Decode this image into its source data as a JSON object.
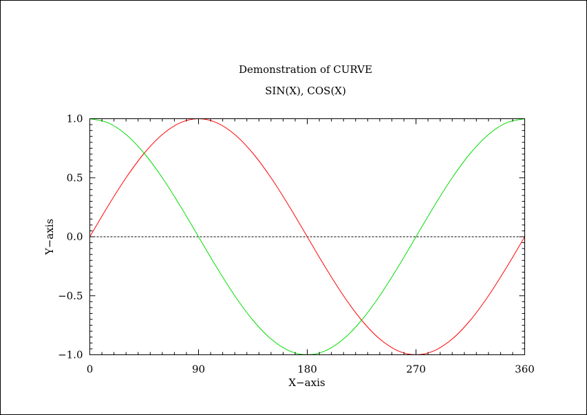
{
  "chart_data": {
    "type": "line",
    "title": "Demonstration of CURVE",
    "subtitle": "SIN(X), COS(X)",
    "xlabel": "X−axis",
    "ylabel": "Y−axis",
    "xlim": [
      0,
      360
    ],
    "ylim": [
      -1.0,
      1.0
    ],
    "x_ticks": [
      0,
      90,
      180,
      270,
      360
    ],
    "x_tick_labels": [
      "0",
      "90",
      "180",
      "270",
      "360"
    ],
    "y_ticks": [
      1.0,
      0.5,
      0.0,
      -0.5,
      -1.0
    ],
    "y_tick_labels": [
      "1.0",
      "0.5",
      "0.0",
      "−0.5",
      "−1.0"
    ],
    "x_minor_step": 10,
    "y_minor_step": 0.05,
    "grid": false,
    "reference_line": {
      "y": 0.0,
      "style": "dashed",
      "color": "#000000"
    },
    "x": [
      0,
      15,
      30,
      45,
      60,
      75,
      90,
      105,
      120,
      135,
      150,
      165,
      180,
      195,
      210,
      225,
      240,
      255,
      270,
      285,
      300,
      315,
      330,
      345,
      360
    ],
    "series": [
      {
        "color": "#ff0000",
        "values": [
          0.0,
          0.259,
          0.5,
          0.707,
          0.866,
          0.966,
          1.0,
          0.966,
          0.866,
          0.707,
          0.5,
          0.259,
          0.0,
          -0.259,
          -0.5,
          -0.707,
          -0.866,
          -0.966,
          -1.0,
          -0.966,
          -0.866,
          -0.707,
          -0.5,
          -0.259,
          0.0
        ]
      },
      {
        "color": "#00dd00",
        "values": [
          1.0,
          0.966,
          0.866,
          0.707,
          0.5,
          0.259,
          0.0,
          -0.259,
          -0.5,
          -0.707,
          -0.866,
          -0.966,
          -1.0,
          -0.966,
          -0.866,
          -0.707,
          -0.5,
          -0.259,
          0.0,
          0.259,
          0.5,
          0.707,
          0.866,
          0.966,
          1.0
        ]
      }
    ]
  }
}
